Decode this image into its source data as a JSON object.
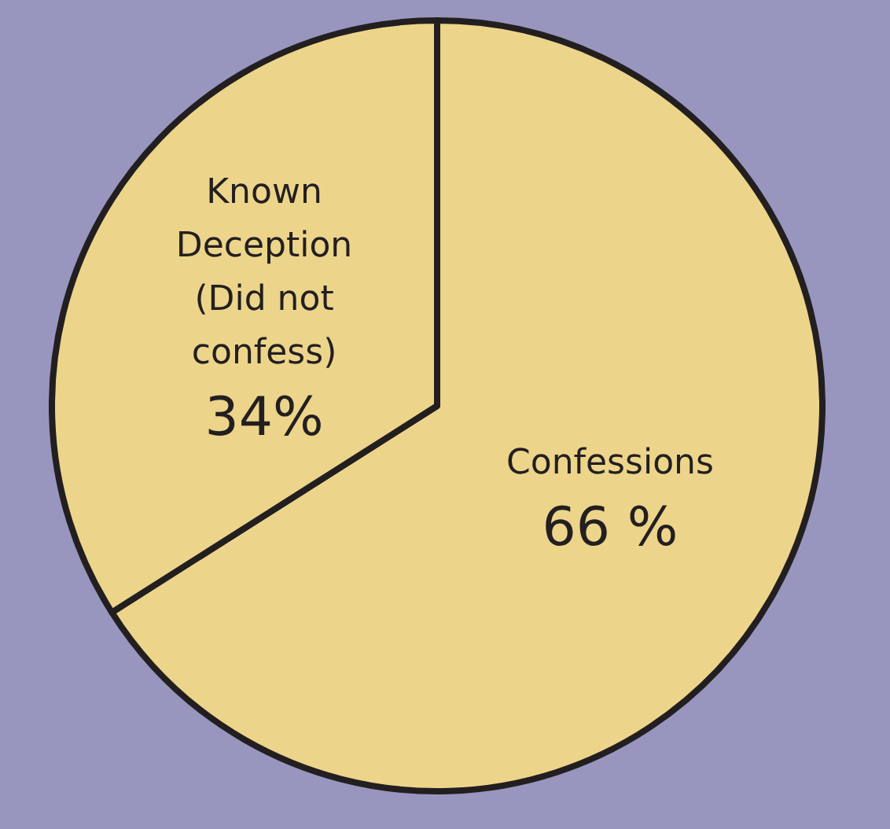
{
  "chart_data": {
    "type": "pie",
    "categories": [
      "Confessions",
      "Known Deception (Did not confess)"
    ],
    "values": [
      66,
      34
    ],
    "value_labels": [
      "66 %",
      "34%"
    ],
    "colors": [
      "#ecd58a",
      "#ecd58a"
    ],
    "legend": false
  }
}
